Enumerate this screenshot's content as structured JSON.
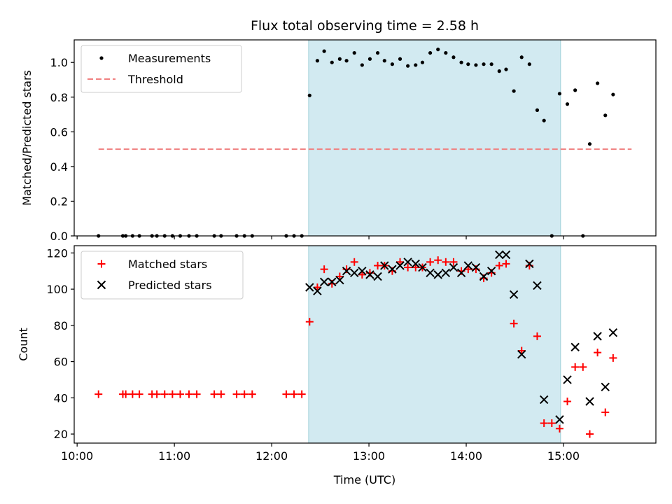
{
  "chart_data": {
    "type": "scatter",
    "title": "Flux total observing time = 2.58 h",
    "xlabel": "Time (UTC)",
    "xlim": [
      9.97,
      15.95
    ],
    "x_ticks": [
      10,
      11,
      12,
      13,
      14,
      15
    ],
    "x_tick_labels": [
      "10:00",
      "11:00",
      "12:00",
      "13:00",
      "14:00",
      "15:00"
    ],
    "highlight_span": {
      "x_start": 12.38,
      "x_end": 14.97,
      "color": "#add8e6"
    },
    "panels": [
      {
        "id": "ratio",
        "ylabel": "Matched/Predicted stars",
        "ylim": [
          0.0,
          1.13
        ],
        "y_ticks": [
          0.0,
          0.2,
          0.4,
          0.6,
          0.8,
          1.0
        ],
        "y_tick_labels": [
          "0.0",
          "0.2",
          "0.4",
          "0.6",
          "0.8",
          "1.0"
        ],
        "legend_position": "top-left",
        "series": [
          {
            "name": "Measurements",
            "marker": "dot",
            "color": "#000000",
            "points": [
              [
                10.22,
                0.0
              ],
              [
                10.47,
                0.0
              ],
              [
                10.5,
                0.0
              ],
              [
                10.57,
                0.0
              ],
              [
                10.64,
                0.0
              ],
              [
                10.77,
                0.0
              ],
              [
                10.82,
                0.0
              ],
              [
                10.9,
                0.0
              ],
              [
                10.98,
                0.0
              ],
              [
                11.06,
                0.0
              ],
              [
                11.15,
                0.0
              ],
              [
                11.23,
                0.0
              ],
              [
                11.41,
                0.0
              ],
              [
                11.48,
                0.0
              ],
              [
                11.64,
                0.0
              ],
              [
                11.72,
                0.0
              ],
              [
                11.8,
                0.0
              ],
              [
                12.15,
                0.0
              ],
              [
                12.23,
                0.0
              ],
              [
                12.31,
                0.0
              ],
              [
                12.39,
                0.81
              ],
              [
                12.47,
                1.01
              ],
              [
                12.54,
                1.065
              ],
              [
                12.62,
                1.0
              ],
              [
                12.7,
                1.02
              ],
              [
                12.77,
                1.01
              ],
              [
                12.85,
                1.055
              ],
              [
                12.93,
                0.985
              ],
              [
                13.01,
                1.02
              ],
              [
                13.09,
                1.055
              ],
              [
                13.16,
                1.01
              ],
              [
                13.24,
                0.99
              ],
              [
                13.32,
                1.02
              ],
              [
                13.4,
                0.98
              ],
              [
                13.48,
                0.985
              ],
              [
                13.55,
                1.0
              ],
              [
                13.63,
                1.055
              ],
              [
                13.71,
                1.075
              ],
              [
                13.79,
                1.055
              ],
              [
                13.87,
                1.03
              ],
              [
                13.95,
                1.0
              ],
              [
                14.02,
                0.99
              ],
              [
                14.1,
                0.985
              ],
              [
                14.18,
                0.99
              ],
              [
                14.26,
                0.99
              ],
              [
                14.34,
                0.95
              ],
              [
                14.41,
                0.96
              ],
              [
                14.49,
                0.835
              ],
              [
                14.57,
                1.03
              ],
              [
                14.65,
                0.99
              ],
              [
                14.73,
                0.725
              ],
              [
                14.8,
                0.665
              ],
              [
                14.88,
                0.0
              ],
              [
                14.96,
                0.82
              ],
              [
                15.04,
                0.76
              ],
              [
                15.12,
                0.84
              ],
              [
                15.2,
                0.0
              ],
              [
                15.27,
                0.53
              ],
              [
                15.35,
                0.88
              ],
              [
                15.43,
                0.695
              ],
              [
                15.51,
                0.815
              ]
            ]
          },
          {
            "name": "Threshold",
            "marker": "dashed-line",
            "color": "#f08080",
            "x": [
              10.22,
              15.7
            ],
            "y": [
              0.5,
              0.5
            ]
          }
        ]
      },
      {
        "id": "counts",
        "ylabel": "Count",
        "ylim": [
          15,
          124
        ],
        "y_ticks": [
          20,
          40,
          60,
          80,
          100,
          120
        ],
        "y_tick_labels": [
          "20",
          "40",
          "60",
          "80",
          "100",
          "120"
        ],
        "legend_position": "top-left",
        "series": [
          {
            "name": "Matched stars",
            "marker": "plus",
            "color": "#ff0000",
            "points": [
              [
                10.22,
                42
              ],
              [
                10.47,
                42
              ],
              [
                10.5,
                42
              ],
              [
                10.57,
                42
              ],
              [
                10.64,
                42
              ],
              [
                10.77,
                42
              ],
              [
                10.82,
                42
              ],
              [
                10.9,
                42
              ],
              [
                10.98,
                42
              ],
              [
                11.06,
                42
              ],
              [
                11.15,
                42
              ],
              [
                11.23,
                42
              ],
              [
                11.41,
                42
              ],
              [
                11.48,
                42
              ],
              [
                11.64,
                42
              ],
              [
                11.72,
                42
              ],
              [
                11.8,
                42
              ],
              [
                12.15,
                42
              ],
              [
                12.23,
                42
              ],
              [
                12.31,
                42
              ],
              [
                12.39,
                82
              ],
              [
                12.47,
                101
              ],
              [
                12.54,
                111
              ],
              [
                12.62,
                103
              ],
              [
                12.7,
                107
              ],
              [
                12.77,
                111
              ],
              [
                12.85,
                115
              ],
              [
                12.93,
                108
              ],
              [
                13.01,
                109
              ],
              [
                13.09,
                113
              ],
              [
                13.16,
                113
              ],
              [
                13.24,
                110
              ],
              [
                13.32,
                115
              ],
              [
                13.4,
                112
              ],
              [
                13.48,
                112
              ],
              [
                13.55,
                112
              ],
              [
                13.63,
                115
              ],
              [
                13.71,
                116
              ],
              [
                13.79,
                115
              ],
              [
                13.87,
                115
              ],
              [
                13.95,
                110
              ],
              [
                14.02,
                111
              ],
              [
                14.1,
                111
              ],
              [
                14.18,
                106
              ],
              [
                14.26,
                109
              ],
              [
                14.34,
                113
              ],
              [
                14.41,
                114
              ],
              [
                14.49,
                81
              ],
              [
                14.57,
                66
              ],
              [
                14.65,
                113
              ],
              [
                14.73,
                74
              ],
              [
                14.8,
                26
              ],
              [
                14.88,
                26
              ],
              [
                14.96,
                23
              ],
              [
                15.04,
                38
              ],
              [
                15.12,
                57
              ],
              [
                15.2,
                57
              ],
              [
                15.27,
                20
              ],
              [
                15.35,
                65
              ],
              [
                15.43,
                32
              ],
              [
                15.51,
                62
              ]
            ]
          },
          {
            "name": "Predicted stars",
            "marker": "x",
            "color": "#000000",
            "points": [
              [
                12.39,
                101
              ],
              [
                12.47,
                99
              ],
              [
                12.54,
                104
              ],
              [
                12.62,
                104
              ],
              [
                12.7,
                105
              ],
              [
                12.77,
                110
              ],
              [
                12.85,
                109
              ],
              [
                12.93,
                110
              ],
              [
                13.01,
                108
              ],
              [
                13.09,
                107
              ],
              [
                13.16,
                113
              ],
              [
                13.24,
                111
              ],
              [
                13.32,
                113
              ],
              [
                13.4,
                115
              ],
              [
                13.48,
                114
              ],
              [
                13.55,
                112
              ],
              [
                13.63,
                109
              ],
              [
                13.71,
                108
              ],
              [
                13.79,
                109
              ],
              [
                13.87,
                112
              ],
              [
                13.95,
                109
              ],
              [
                14.02,
                113
              ],
              [
                14.1,
                112
              ],
              [
                14.18,
                107
              ],
              [
                14.26,
                110
              ],
              [
                14.34,
                119
              ],
              [
                14.41,
                119
              ],
              [
                14.49,
                97
              ],
              [
                14.57,
                64
              ],
              [
                14.65,
                114
              ],
              [
                14.73,
                102
              ],
              [
                14.8,
                39
              ],
              [
                14.96,
                28
              ],
              [
                15.04,
                50
              ],
              [
                15.12,
                68
              ],
              [
                15.27,
                38
              ],
              [
                15.35,
                74
              ],
              [
                15.43,
                46
              ],
              [
                15.51,
                76
              ]
            ]
          }
        ]
      }
    ]
  }
}
